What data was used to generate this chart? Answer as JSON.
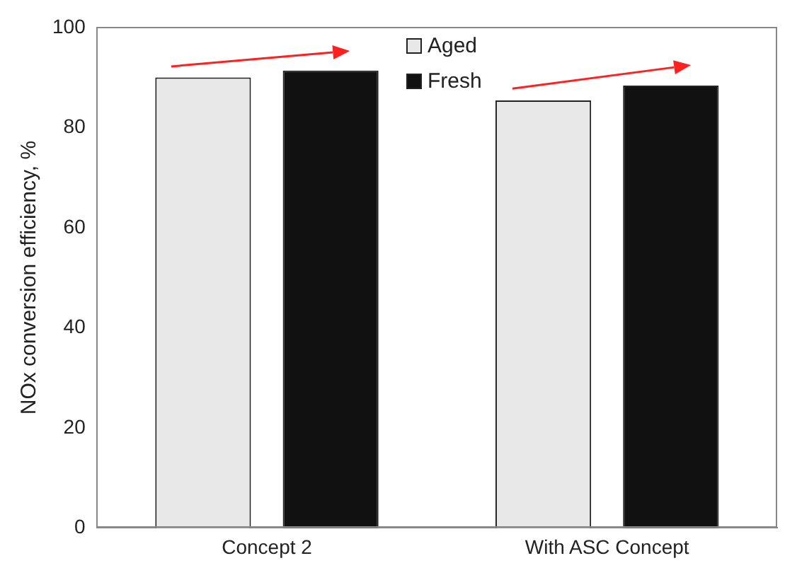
{
  "chart_data": {
    "type": "bar",
    "ylabel": "NOx conversion efficiency, %",
    "categories": [
      "Concept 2",
      "With ASC Concept"
    ],
    "series": [
      {
        "name": "Aged",
        "color": "#e8e8e8",
        "values": [
          90,
          85.4
        ]
      },
      {
        "name": "Fresh",
        "color": "#111111",
        "values": [
          91.4,
          88.4
        ]
      }
    ],
    "ylim": [
      0,
      100
    ],
    "yticks": [
      0,
      20,
      40,
      60,
      80,
      100
    ],
    "grid": false,
    "legend": "top"
  }
}
